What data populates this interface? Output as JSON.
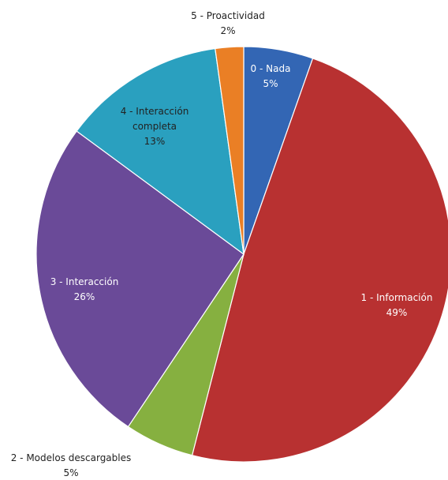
{
  "chart_data": {
    "type": "pie",
    "title": "",
    "start_angle_deg": 0,
    "direction": "clockwise",
    "slices": [
      {
        "label": "0 - Nada",
        "percent_label": "5%",
        "value": 5.4,
        "color": "#3366b4",
        "label_color": "#ffffff"
      },
      {
        "label": "1 - Información",
        "percent_label": "49%",
        "value": 48.6,
        "color": "#b83131",
        "label_color": "#ffffff"
      },
      {
        "label": "2 - Modelos descargables",
        "percent_label": "5%",
        "value": 5.4,
        "color": "#86b040",
        "label_color": "#222222"
      },
      {
        "label": "3 - Interacción",
        "percent_label": "26%",
        "value": 25.7,
        "color": "#6a4a98",
        "label_color": "#ffffff"
      },
      {
        "label": "4 - Interacción completa",
        "percent_label": "13%",
        "value": 12.7,
        "color": "#2aa0bf",
        "label_color": "#222222"
      },
      {
        "label": "5 - Proactividad",
        "percent_label": "2%",
        "value": 2.2,
        "color": "#ea7f25",
        "label_color": "#222222"
      }
    ]
  }
}
